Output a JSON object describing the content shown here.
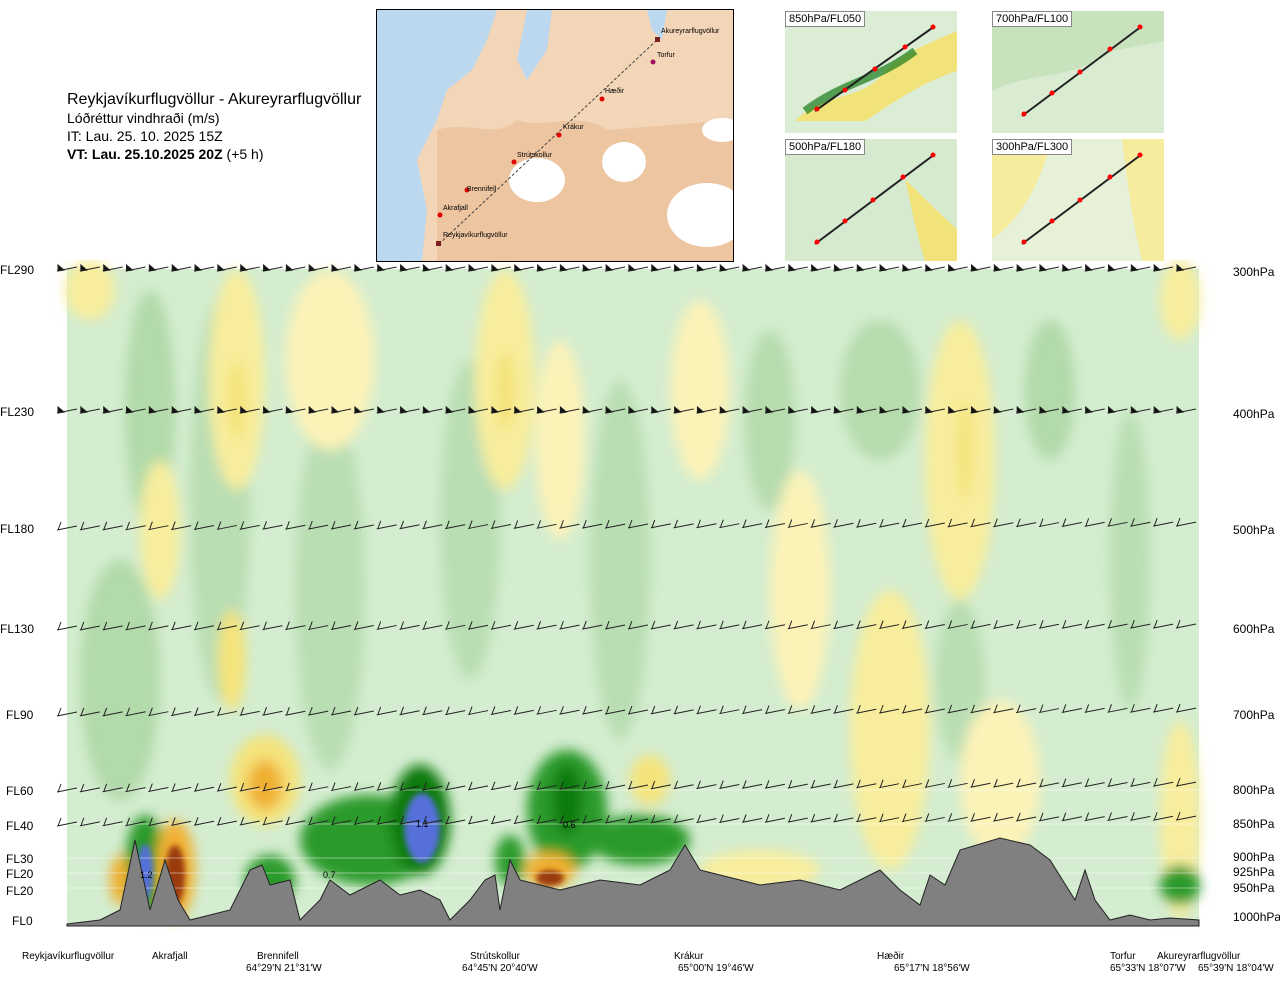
{
  "header": {
    "route": "Reykjavíkurflugvöllur - Akureyrarflugvöllur",
    "parameter": "Lóðréttur vindhraði (m/s)",
    "issue_time": "IT: Lau. 25. 10. 2025 15Z",
    "valid_prefix": "VT: Lau. 25.10.2025 20Z",
    "valid_suffix": " (+5 h)"
  },
  "map": {
    "labels": [
      "Akureyrarflugvöllur",
      "Torfur",
      "Hæðir",
      "Krákur",
      "Strútskollur",
      "Brennifell",
      "Akrafjall",
      "Reykjavíkurflugvöllur"
    ]
  },
  "minimaps": [
    {
      "label": "850hPa/FL050"
    },
    {
      "label": "700hPa/FL100"
    },
    {
      "label": "500hPa/FL180"
    },
    {
      "label": "300hPa/FL300"
    }
  ],
  "colors": {
    "grey_terrain": "#808080",
    "light_green": "#d4edd0",
    "mid_green": "#a9d4a0",
    "dark_green": "#2c9a2c",
    "deep_green": "#0a7a0a",
    "blue": "#5470d8",
    "light_yellow": "#fbf2b8",
    "yellow": "#f4e37a",
    "orange": "#f0b030",
    "brown": "#9a3a10"
  },
  "chart_data": {
    "type": "heatmap",
    "title": "Lóðréttur vindhraði (m/s)",
    "flight_levels": [
      "FL290",
      "FL230",
      "FL180",
      "FL130",
      "FL90",
      "FL60",
      "FL40",
      "FL30",
      "FL20",
      "FL20",
      "FL0"
    ],
    "pressure_levels": [
      "300hPa",
      "400hPa",
      "500hPa",
      "600hPa",
      "700hPa",
      "800hPa",
      "850hPa",
      "900hPa",
      "925hPa",
      "950hPa",
      "1000hPa"
    ],
    "stations": [
      {
        "name": "Reykjavíkurflugvöllur",
        "coord": ""
      },
      {
        "name": "Akrafjall",
        "coord": ""
      },
      {
        "name": "Brennifell",
        "coord": "64°29'N 21°31'W"
      },
      {
        "name": "Strútskollur",
        "coord": "64°45'N 20°40'W"
      },
      {
        "name": "Krákur",
        "coord": "65°00'N 19°46'W"
      },
      {
        "name": "Hæðir",
        "coord": "65°17'N 18°56'W"
      },
      {
        "name": "Torfur",
        "coord": "65°33'N 18°07'W"
      },
      {
        "name": "Akureyrarflugvöllur",
        "coord": "65°39'N 18°04'W"
      }
    ],
    "annotations": [
      {
        "text": "1.1",
        "level": "FL40",
        "station_near": "Brennifell"
      },
      {
        "text": "0.6",
        "level": "FL40",
        "station_near": "Strútskollur"
      },
      {
        "text": "1.2",
        "level": "FL30",
        "station_near": "Akrafjall"
      },
      {
        "text": "0.7",
        "level": "FL20",
        "station_near": "Brennifell"
      }
    ]
  }
}
